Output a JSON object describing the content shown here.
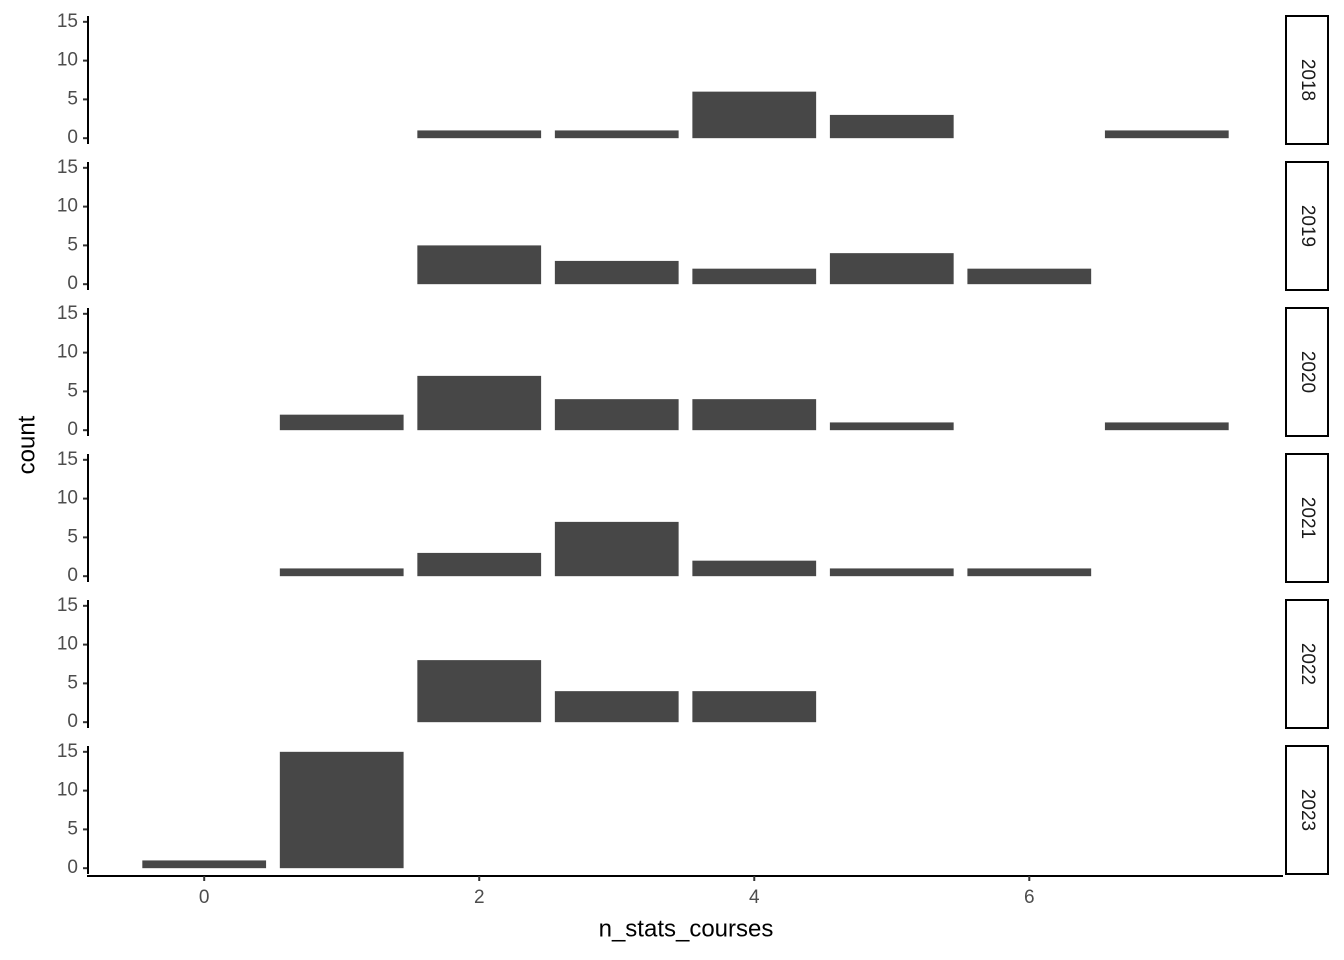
{
  "chart_data": {
    "type": "bar",
    "x_label": "n_stats_courses",
    "y_label": "count",
    "color": "#474747",
    "xlim": [
      -0.845,
      7.845
    ],
    "xticks": [
      0,
      2,
      4,
      6
    ],
    "ylim": [
      -0.75,
      15.75
    ],
    "yticks": [
      0,
      5,
      10,
      15
    ],
    "facets": [
      {
        "label": "2018",
        "x": [
          2,
          3,
          4,
          5,
          7
        ],
        "values": [
          1,
          1,
          6,
          3,
          1
        ]
      },
      {
        "label": "2019",
        "x": [
          2,
          3,
          4,
          5,
          6
        ],
        "values": [
          5,
          3,
          2,
          4,
          2
        ]
      },
      {
        "label": "2020",
        "x": [
          1,
          2,
          3,
          4,
          5,
          7
        ],
        "values": [
          2,
          7,
          4,
          4,
          1,
          1
        ]
      },
      {
        "label": "2021",
        "x": [
          1,
          2,
          3,
          4,
          5,
          6
        ],
        "values": [
          1,
          3,
          7,
          2,
          1,
          1
        ]
      },
      {
        "label": "2022",
        "x": [
          2,
          3,
          4
        ],
        "values": [
          8,
          4,
          4
        ]
      },
      {
        "label": "2023",
        "x": [
          0,
          1
        ],
        "values": [
          1,
          15
        ]
      }
    ]
  }
}
